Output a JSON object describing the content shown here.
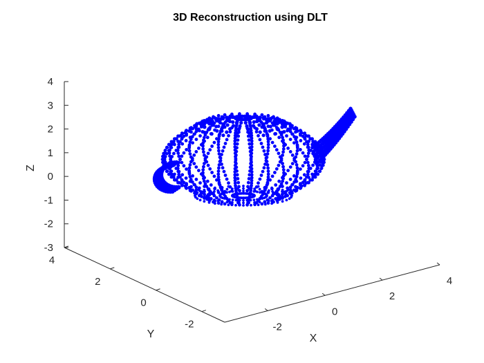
{
  "chart_data": {
    "type": "scatter3d",
    "title": "3D Reconstruction using DLT",
    "xlabel": "X",
    "ylabel": "Y",
    "zlabel": "Z",
    "x_ticks": [
      "-2",
      "0",
      "2",
      "4"
    ],
    "y_ticks": [
      "-2",
      "0",
      "2",
      "4"
    ],
    "z_ticks": [
      "-3",
      "-2",
      "-1",
      "0",
      "1",
      "2",
      "3",
      "4"
    ],
    "xlim": [
      -3.5,
      4.0
    ],
    "ylim": [
      -3.0,
      4.0
    ],
    "zlim": [
      -3.0,
      4.0
    ],
    "marker_color": "#0000ff",
    "object": "teapot",
    "grid": false,
    "legend": "none"
  }
}
